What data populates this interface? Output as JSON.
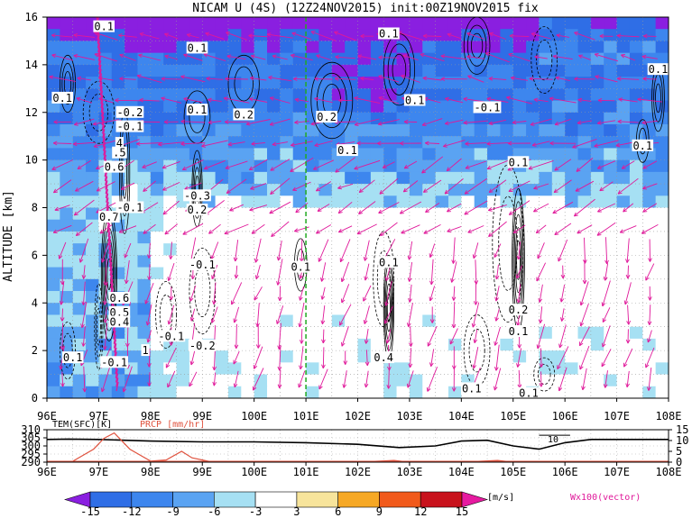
{
  "title": "NICAM U (4S) (12Z24NOV2015) init:00Z19NOV2015 fix",
  "chart_data": [
    {
      "type": "heatmap",
      "title": "NICAM U (4S) (12Z24NOV2015) init:00Z19NOV2015 fix",
      "ylabel": "ALTITUDE [km]",
      "xlabel": "",
      "x_ticks": [
        "96E",
        "97E",
        "98E",
        "99E",
        "100E",
        "101E",
        "102E",
        "103E",
        "104E",
        "105E",
        "106E",
        "107E",
        "108E"
      ],
      "y_ticks": [
        "0",
        "2",
        "4",
        "6",
        "8",
        "10",
        "12",
        "14",
        "16"
      ],
      "xlim": [
        96,
        108
      ],
      "ylim": [
        0,
        16
      ],
      "grid": true,
      "marker_longitude": 101,
      "contour_labels": [
        {
          "text": "0.1",
          "x": 97.1,
          "y": 15.6
        },
        {
          "text": "0.1",
          "x": 102.6,
          "y": 15.3
        },
        {
          "text": "0.1",
          "x": 98.9,
          "y": 14.7
        },
        {
          "text": "0.1",
          "x": 96.3,
          "y": 12.6
        },
        {
          "text": "-0.2",
          "x": 97.6,
          "y": 12.0
        },
        {
          "text": "-0.1",
          "x": 97.6,
          "y": 11.4
        },
        {
          "text": "0.1",
          "x": 98.9,
          "y": 12.1
        },
        {
          "text": "0.2",
          "x": 99.8,
          "y": 11.9
        },
        {
          "text": "0.2",
          "x": 101.4,
          "y": 11.8
        },
        {
          "text": "0.1",
          "x": 103.1,
          "y": 12.5
        },
        {
          "text": "-0.1",
          "x": 104.5,
          "y": 12.2
        },
        {
          "text": "0.1",
          "x": 107.8,
          "y": 13.8
        },
        {
          "text": "0.1",
          "x": 101.8,
          "y": 10.4
        },
        {
          "text": "0.1",
          "x": 107.5,
          "y": 10.6
        },
        {
          "text": "0.1",
          "x": 105.1,
          "y": 9.9
        },
        {
          "text": "0.6",
          "x": 97.3,
          "y": 9.7
        },
        {
          "text": "-0.3",
          "x": 98.9,
          "y": 8.5
        },
        {
          "text": "0.2",
          "x": 98.9,
          "y": 7.9
        },
        {
          "text": "0.7",
          "x": 97.2,
          "y": 7.6
        },
        {
          "text": "-0.1",
          "x": 97.6,
          "y": 8.0
        },
        {
          "text": "0.1",
          "x": 100.9,
          "y": 5.5
        },
        {
          "text": "0.1",
          "x": 102.6,
          "y": 5.7
        },
        {
          "text": "-0.1",
          "x": 99.0,
          "y": 5.6
        },
        {
          "text": "0.6",
          "x": 97.4,
          "y": 4.2
        },
        {
          "text": "0.5",
          "x": 97.4,
          "y": 3.6
        },
        {
          "text": "0.4",
          "x": 97.4,
          "y": 3.2
        },
        {
          "text": "0.2",
          "x": 105.1,
          "y": 3.7
        },
        {
          "text": "0.1",
          "x": 105.1,
          "y": 2.8
        },
        {
          "text": "-0.1",
          "x": 98.4,
          "y": 2.6
        },
        {
          "text": "-0.2",
          "x": 99.0,
          "y": 2.2
        },
        {
          "text": "0.1",
          "x": 96.5,
          "y": 1.7
        },
        {
          "text": "-0.1",
          "x": 97.3,
          "y": 1.5
        },
        {
          "text": "0.4",
          "x": 102.5,
          "y": 1.7
        },
        {
          "text": "0.1",
          "x": 104.2,
          "y": 0.4
        },
        {
          "text": "0.1",
          "x": 105.3,
          "y": 0.2
        },
        {
          "text": "4",
          "x": 97.4,
          "y": 10.7
        },
        {
          "text": ".5",
          "x": 97.4,
          "y": 10.3
        },
        {
          "text": "1",
          "x": 97.9,
          "y": 2.0
        }
      ]
    },
    {
      "type": "line",
      "series": [
        {
          "name": "TEM(SFC)[K]",
          "points": [
            [
              96,
              304
            ],
            [
              96.4,
              304.2
            ],
            [
              97,
              304
            ],
            [
              97.5,
              303.5
            ],
            [
              98,
              303
            ],
            [
              99,
              302.5
            ],
            [
              100,
              302.5
            ],
            [
              101,
              302
            ],
            [
              102,
              301
            ],
            [
              102.8,
              299
            ],
            [
              103.5,
              300
            ],
            [
              104,
              303
            ],
            [
              104.5,
              303.5
            ],
            [
              105,
              300
            ],
            [
              105.5,
              298
            ],
            [
              106,
              302
            ],
            [
              106.5,
              304
            ],
            [
              107,
              304
            ],
            [
              108,
              304
            ]
          ]
        },
        {
          "name": "PRCP [mm/hr]",
          "points": [
            [
              96,
              0
            ],
            [
              96.5,
              0.4
            ],
            [
              96.9,
              6
            ],
            [
              97.1,
              11
            ],
            [
              97.3,
              13.5
            ],
            [
              97.6,
              6
            ],
            [
              98,
              0.5
            ],
            [
              98.3,
              1
            ],
            [
              98.6,
              5
            ],
            [
              98.8,
              2
            ],
            [
              99.2,
              0
            ],
            [
              102,
              0
            ],
            [
              102.7,
              0.8
            ],
            [
              103,
              0
            ],
            [
              104,
              0
            ],
            [
              104.7,
              0.8
            ],
            [
              105,
              0
            ],
            [
              108,
              0
            ]
          ]
        }
      ],
      "label_tem": "TEM(SFC)[K]",
      "label_prcp": "PRCP [mm/hr]",
      "y_left_ticks": [
        "290",
        "295",
        "300",
        "305",
        "310"
      ],
      "y_right_ticks": [
        "0",
        "5",
        "10",
        "15"
      ],
      "annotation": "10",
      "x_ticks": [
        "96E",
        "97E",
        "98E",
        "99E",
        "100E",
        "101E",
        "102E",
        "103E",
        "104E",
        "105E",
        "106E",
        "107E",
        "108E"
      ]
    }
  ],
  "colorbar": {
    "levels": [
      "-15",
      "-12",
      "-9",
      "-6",
      "-3",
      "3",
      "6",
      "9",
      "12",
      "15"
    ],
    "colors": [
      "#8a1fe0",
      "#2f6ee6",
      "#3d86ee",
      "#5aa3f2",
      "#a6e0f3",
      "#ffffff",
      "#f7e49b",
      "#f6a825",
      "#f15a1b",
      "#c8121c",
      "#e61aa0"
    ],
    "unit": "[m/s]"
  },
  "vector_label": "Wx100(vector)",
  "colors": {
    "vector": "#e0189a",
    "prcp": "#e0533f",
    "marker": "#22aa22"
  }
}
